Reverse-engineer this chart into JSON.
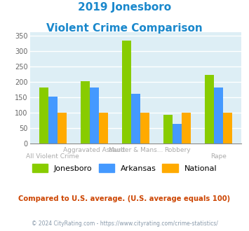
{
  "title_line1": "2019 Jonesboro",
  "title_line2": "Violent Crime Comparison",
  "title_color": "#1a88cc",
  "series_names": [
    "Jonesboro",
    "Arkansas",
    "National"
  ],
  "series": {
    "Jonesboro": {
      "values": [
        180,
        201,
        333,
        93,
        222
      ],
      "color": "#88cc00"
    },
    "Arkansas": {
      "values": [
        152,
        180,
        160,
        63,
        180
      ],
      "color": "#4499ff"
    },
    "National": {
      "values": [
        100,
        100,
        100,
        100,
        100
      ],
      "color": "#ffaa00"
    }
  },
  "ylim": [
    0,
    360
  ],
  "yticks": [
    0,
    50,
    100,
    150,
    200,
    250,
    300,
    350
  ],
  "plot_bg": "#ddeef5",
  "footer_text": "Compared to U.S. average. (U.S. average equals 100)",
  "footer_color": "#cc4400",
  "copyright_text": "© 2024 CityRating.com - https://www.cityrating.com/crime-statistics/",
  "copyright_color": "#8899aa",
  "xlabel_color": "#aaaaaa",
  "grid_color": "#ffffff",
  "bar_width": 0.22,
  "top_row_labels": [
    "",
    "Aggravated Assault",
    "Murder & Mans...",
    "Robbery",
    ""
  ],
  "bot_row_labels": [
    "All Violent Crime",
    "",
    "",
    "",
    "Rape"
  ]
}
